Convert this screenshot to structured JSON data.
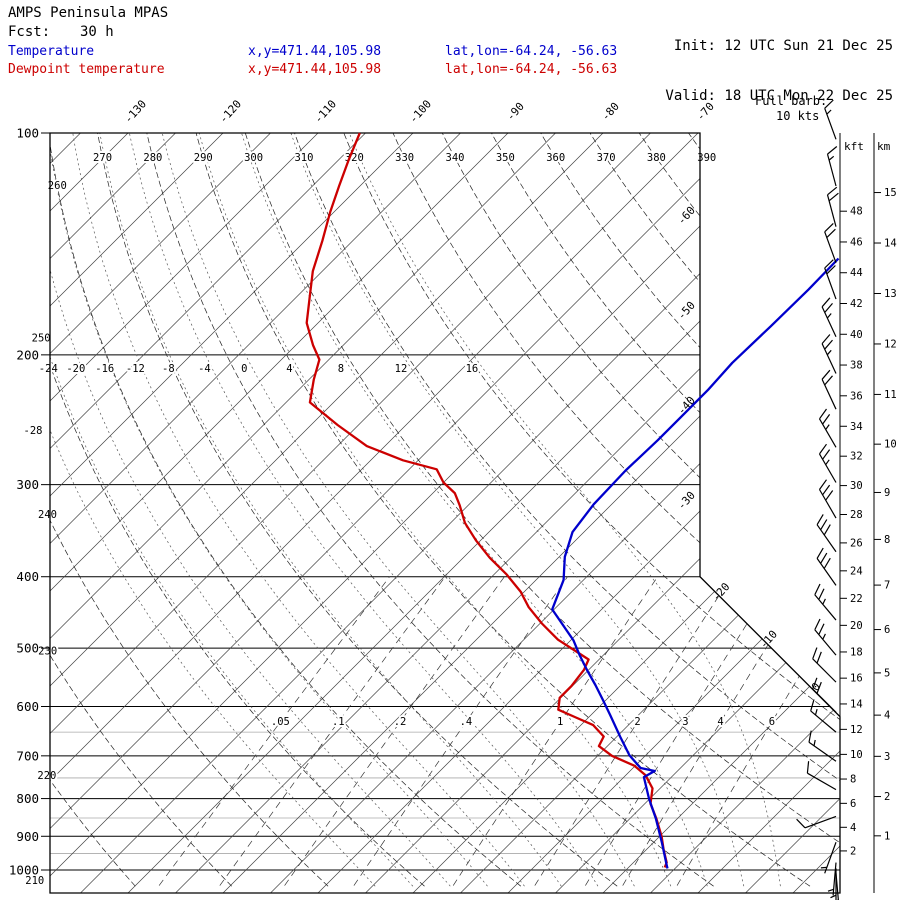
{
  "header": {
    "model": "AMPS Peninsula MPAS",
    "fcst_label": "Fcst:",
    "fcst_value": "30 h",
    "init_label": "Init:",
    "init_value": "12 UTC Sun 21 Dec 25",
    "valid_label": "Valid:",
    "valid_value": "18 UTC Mon 22 Dec 25"
  },
  "legend": {
    "temperature": {
      "label": "Temperature",
      "xy": "x,y=471.44,105.98",
      "latlon": "lat,lon=-64.24, -56.63",
      "color": "#0000cc"
    },
    "dewpoint": {
      "label": "Dewpoint temperature",
      "xy": "x,y=471.44,105.98",
      "latlon": "lat,lon=-64.24, -56.63",
      "color": "#cc0000"
    }
  },
  "barb_note": {
    "line1": "Full barb:",
    "line2": "10 kts"
  },
  "axes": {
    "kft_label": "kft",
    "km_label": "km"
  },
  "chart_data": {
    "type": "skewt-logp",
    "title": "AMPS Peninsula MPAS 30 h forecast sounding",
    "pressure_major": [
      100,
      200,
      300,
      400,
      500,
      600,
      700,
      800,
      900,
      1000
    ],
    "pressure_minor": [
      650,
      750,
      850,
      950
    ],
    "pressure_range": [
      100,
      1052
    ],
    "isotherm_step": 5,
    "isotherm_top_labels": [
      -130,
      -120,
      -110,
      -100,
      -90,
      -80,
      -70
    ],
    "isotherm_right_labels": [
      -60,
      -50,
      -40,
      -30
    ],
    "isotherm_diag_labels": [
      -20,
      -10,
      0
    ],
    "dry_adiabats": [
      210,
      220,
      230,
      240,
      250,
      260,
      270,
      280,
      290,
      300,
      310,
      320,
      330,
      340,
      350,
      360,
      370,
      380,
      390
    ],
    "dry_left_label_anchors": {
      "210": 1035,
      "220": 745,
      "230": 505,
      "240": 330,
      "250": 190,
      "260": 118
    },
    "moist_adiabats": [
      -28,
      -24,
      -20,
      -16,
      -12,
      -8,
      -4,
      0,
      4,
      8,
      12,
      16
    ],
    "moist_label_values": [
      -24,
      -20,
      -16,
      -12,
      -8,
      -4,
      0,
      4,
      8,
      12,
      16
    ],
    "moist_label_pressure": 200,
    "mixing_ratio": [
      {
        "w": 0.05,
        "label": ".05"
      },
      {
        "w": 0.1,
        "label": ".1"
      },
      {
        "w": 0.2,
        "label": ".2"
      },
      {
        "w": 0.4,
        "label": ".4"
      },
      {
        "w": 1,
        "label": "1"
      },
      {
        "w": 2,
        "label": "2"
      },
      {
        "w": 3,
        "label": "3"
      },
      {
        "w": 4,
        "label": "4"
      },
      {
        "w": 6,
        "label": "6"
      }
    ],
    "temperature_points": [
      [
        148,
        -42
      ],
      [
        163,
        -41.9
      ],
      [
        183,
        -42
      ],
      [
        205,
        -42.2
      ],
      [
        223,
        -41.9
      ],
      [
        243,
        -41.9
      ],
      [
        261,
        -41.9
      ],
      [
        287,
        -42.1
      ],
      [
        319,
        -41.9
      ],
      [
        348,
        -41.2
      ],
      [
        376,
        -39.4
      ],
      [
        404,
        -37.1
      ],
      [
        443,
        -35.2
      ],
      [
        488,
        -29.7
      ],
      [
        511,
        -27.5
      ],
      [
        536,
        -25.1
      ],
      [
        561,
        -22.7
      ],
      [
        587,
        -20.4
      ],
      [
        616,
        -18
      ],
      [
        660,
        -14.6
      ],
      [
        699,
        -11.7
      ],
      [
        727,
        -9.2
      ],
      [
        734,
        -7.4
      ],
      [
        748,
        -7.9
      ],
      [
        800,
        -5.1
      ],
      [
        851,
        -2.3
      ],
      [
        918,
        0.9
      ],
      [
        988,
        3.9
      ],
      [
        995,
        4.2
      ]
    ],
    "dewpoint_points": [
      [
        100,
        -105.6
      ],
      [
        109,
        -103.9
      ],
      [
        118,
        -102.2
      ],
      [
        128,
        -100.4
      ],
      [
        140,
        -98.2
      ],
      [
        154,
        -96
      ],
      [
        167,
        -93.6
      ],
      [
        181,
        -91.2
      ],
      [
        194,
        -88.2
      ],
      [
        203,
        -86
      ],
      [
        216,
        -84.5
      ],
      [
        232,
        -82.5
      ],
      [
        249,
        -77.2
      ],
      [
        266,
        -71.9
      ],
      [
        278,
        -66.6
      ],
      [
        286,
        -62.1
      ],
      [
        298,
        -60
      ],
      [
        308,
        -57.7
      ],
      [
        320,
        -55.9
      ],
      [
        338,
        -53.5
      ],
      [
        357,
        -50.5
      ],
      [
        377,
        -47.2
      ],
      [
        397,
        -43.7
      ],
      [
        419,
        -40.4
      ],
      [
        440,
        -37.9
      ],
      [
        463,
        -34.8
      ],
      [
        487,
        -31.4
      ],
      [
        502,
        -28.8
      ],
      [
        518,
        -26.1
      ],
      [
        535,
        -25.5
      ],
      [
        563,
        -25.1
      ],
      [
        584,
        -25.1
      ],
      [
        606,
        -24
      ],
      [
        620,
        -21.5
      ],
      [
        636,
        -18.7
      ],
      [
        659,
        -16.4
      ],
      [
        679,
        -15.9
      ],
      [
        700,
        -13.5
      ],
      [
        722,
        -10.1
      ],
      [
        744,
        -7.9
      ],
      [
        775,
        -5.8
      ],
      [
        813,
        -4.4
      ],
      [
        852,
        -2.2
      ],
      [
        900,
        0.2
      ],
      [
        938,
        1.8
      ],
      [
        977,
        3.5
      ],
      [
        992,
        3.8
      ]
    ],
    "winds": [
      [
        102,
        15,
        340
      ],
      [
        118,
        15,
        345
      ],
      [
        134,
        20,
        345
      ],
      [
        150,
        20,
        340
      ],
      [
        168,
        20,
        340
      ],
      [
        189,
        25,
        335
      ],
      [
        212,
        25,
        335
      ],
      [
        237,
        20,
        335
      ],
      [
        267,
        25,
        330
      ],
      [
        298,
        25,
        330
      ],
      [
        333,
        30,
        330
      ],
      [
        370,
        30,
        325
      ],
      [
        411,
        30,
        325
      ],
      [
        458,
        25,
        320
      ],
      [
        511,
        25,
        320
      ],
      [
        556,
        20,
        315
      ],
      [
        611,
        20,
        315
      ],
      [
        650,
        15,
        310
      ],
      [
        712,
        15,
        305
      ],
      [
        778,
        10,
        300
      ],
      [
        846,
        10,
        250
      ],
      [
        917,
        5,
        200
      ],
      [
        977,
        5,
        185
      ],
      [
        995,
        5,
        180
      ],
      [
        1010,
        5,
        175
      ]
    ],
    "wind_full_barb_kts": 10,
    "kft_ticks": [
      2,
      4,
      6,
      8,
      10,
      12,
      14,
      16,
      18,
      20,
      22,
      24,
      26,
      28,
      30,
      32,
      34,
      36,
      38,
      40,
      42,
      44,
      46,
      48
    ],
    "km_ticks": [
      1,
      2,
      3,
      4,
      5,
      6,
      7,
      8,
      9,
      10,
      11,
      12,
      13,
      14,
      15
    ],
    "colors": {
      "temperature": "#0000cc",
      "dewpoint": "#cc0000",
      "grid": "#000000",
      "minor_grid": "#aaaaaa"
    }
  }
}
